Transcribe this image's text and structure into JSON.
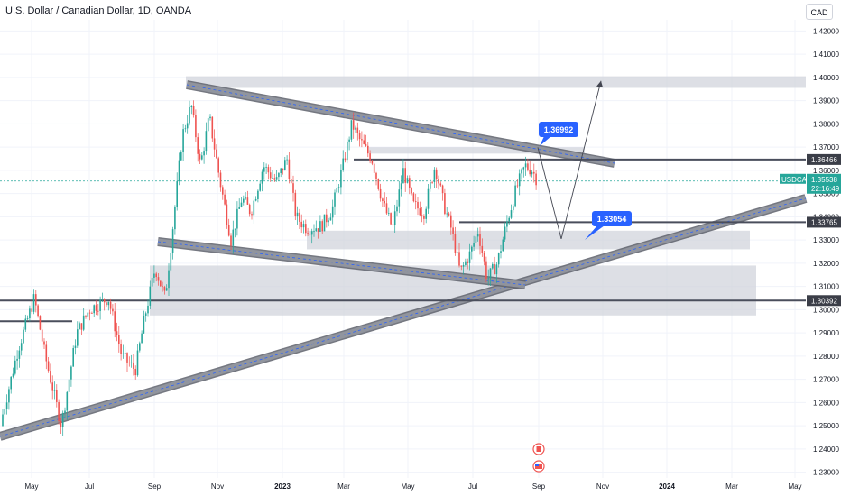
{
  "header": {
    "title": "U.S. Dollar / Canadian Dollar, 1D, OANDA",
    "currency_button": "CAD"
  },
  "chart_data": {
    "type": "candlestick",
    "symbol": "USDCAD",
    "interval": "1D",
    "source": "OANDA",
    "y_ticks": [
      "1.42000",
      "1.41000",
      "1.40000",
      "1.39000",
      "1.38000",
      "1.37000",
      "1.36000",
      "1.35000",
      "1.34000",
      "1.33000",
      "1.32000",
      "1.31000",
      "1.30000",
      "1.29000",
      "1.28000",
      "1.27000",
      "1.26000",
      "1.25000",
      "1.24000",
      "1.23000"
    ],
    "ylim": [
      1.225,
      1.427
    ],
    "x_labels": [
      "May",
      "Jul",
      "Sep",
      "Nov",
      "2023",
      "Mar",
      "May",
      "Jul",
      "Sep",
      "Nov",
      "2024",
      "Mar",
      "May"
    ],
    "price_tags": [
      {
        "label": "1.36466",
        "value": 1.36466,
        "style": "dark"
      },
      {
        "label": "USDCAD",
        "value": 1.35538,
        "style": "teal",
        "sub": "22:16:49"
      },
      {
        "label": "1.33765",
        "value": 1.33765,
        "style": "dark"
      },
      {
        "label": "1.30392",
        "value": 1.30392,
        "style": "dark"
      }
    ],
    "current_price": "1.35538",
    "countdown": "22:16:49",
    "callouts": [
      "1.36992",
      "1.33054"
    ],
    "key_levels": [
      1.36466,
      1.33765,
      1.30392,
      1.295
    ],
    "zones": [
      {
        "from": 1.3955,
        "to": 1.4005
      },
      {
        "from": 1.3672,
        "to": 1.37
      },
      {
        "from": 1.326,
        "to": 1.334
      },
      {
        "from": 1.2975,
        "to": 1.319
      }
    ],
    "projected_path": [
      1.3699,
      1.3305,
      1.3985
    ],
    "approx_range": {
      "low": 1.245,
      "high": 1.3977,
      "last": 1.35538
    },
    "grid": true,
    "colors": {
      "up": "#26a69a",
      "down": "#ef5350",
      "level": "#4a4e5c",
      "channel": "#8a8e99",
      "zone": "#d1d4dc",
      "callout": "#2962ff",
      "teal_tag": "#26a69a"
    }
  }
}
